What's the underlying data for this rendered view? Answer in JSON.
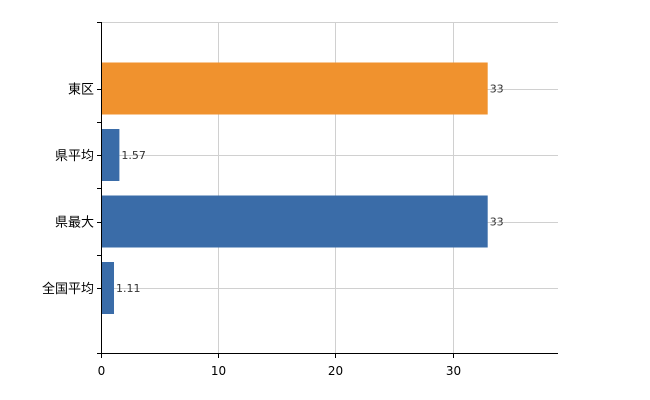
{
  "chart_data": {
    "type": "bar",
    "orientation": "horizontal",
    "title": "",
    "xlabel": "",
    "ylabel": "",
    "categories": [
      "東区",
      "県平均",
      "県最大",
      "全国平均"
    ],
    "values": [
      33,
      1.57,
      33,
      1.11
    ],
    "value_labels": [
      "33",
      "1.57",
      "33",
      "1.11"
    ],
    "bar_colors": [
      "#f0922e",
      "#3a6ca8",
      "#3a6ca8",
      "#3a6ca8"
    ],
    "xlim": [
      0,
      39
    ],
    "x_ticks": [
      0,
      10,
      20,
      30
    ],
    "x_tick_labels": [
      "0",
      "10",
      "20",
      "30"
    ],
    "grid": true,
    "legend": "none"
  }
}
